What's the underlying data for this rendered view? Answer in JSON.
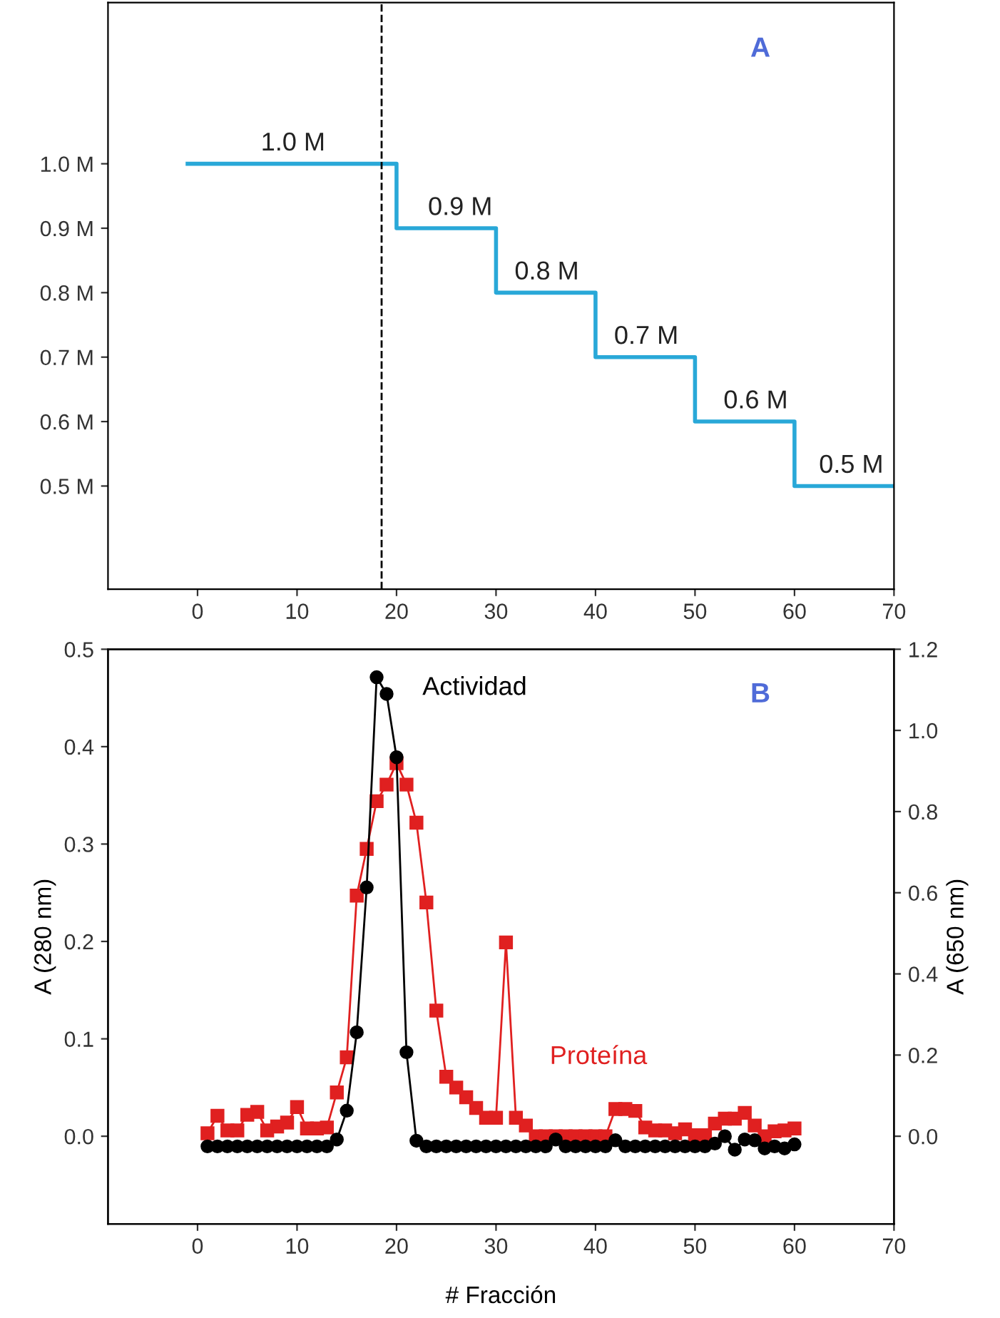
{
  "chart_data": [
    {
      "type": "step",
      "xlim": [
        -9,
        70
      ],
      "xticks": [
        0,
        10,
        20,
        30,
        40,
        50,
        60,
        70
      ],
      "ylim": [
        0.34,
        1.25
      ],
      "yticks": [
        {
          "value": 0.5,
          "label": "0.5 M"
        },
        {
          "value": 0.6,
          "label": "0.6 M"
        },
        {
          "value": 0.7,
          "label": "0.7 M"
        },
        {
          "value": 0.8,
          "label": "0.8 M"
        },
        {
          "value": 0.9,
          "label": "0.9 M"
        },
        {
          "value": 1.0,
          "label": "1.0 M"
        }
      ],
      "series": [
        {
          "color": "#29a8d8",
          "x": [
            -1,
            20,
            30,
            40,
            50,
            60,
            70
          ],
          "values": [
            1.0,
            0.9,
            0.8,
            0.7,
            0.6,
            0.5,
            0.5
          ],
          "marker": "none"
        }
      ],
      "ref_lines": [
        {
          "axis": "x",
          "value": 18.5,
          "color": "#000000",
          "line_style": "dashed"
        }
      ],
      "annotations": [
        "A",
        {
          "text": "1.0 M",
          "x": 9.6,
          "y": 1.0
        },
        {
          "text": "0.9 M",
          "x": 26.4,
          "y": 0.9
        },
        {
          "text": "0.8 M",
          "x": 35.1,
          "y": 0.8
        },
        {
          "text": "0.7 M",
          "x": 45.1,
          "y": 0.7
        },
        {
          "text": "0.6 M",
          "x": 56.1,
          "y": 0.6
        },
        {
          "text": "0.5 M",
          "x": 65.7,
          "y": 0.5
        }
      ]
    },
    {
      "type": "line",
      "xlabel": "# Fracción",
      "ylabel": "A (280 nm)",
      "y2label": "A (650 nm)",
      "xlim": [
        -9,
        70
      ],
      "xticks": [
        0,
        10,
        20,
        30,
        40,
        50,
        60,
        70
      ],
      "ylim": [
        -0.09,
        0.5
      ],
      "yticks": [
        {
          "value": 0,
          "label": "0.0"
        },
        {
          "value": 0.1,
          "label": "0.1"
        },
        {
          "value": 0.2,
          "label": "0.2"
        },
        {
          "value": 0.3,
          "label": "0.3"
        },
        {
          "value": 0.4,
          "label": "0.4"
        },
        {
          "value": 0.5,
          "label": "0.5"
        }
      ],
      "y2lim": [
        -0.216,
        1.2
      ],
      "y2ticks": [
        {
          "value": 0,
          "label": "0.0"
        },
        {
          "value": 0.2,
          "label": "0.2"
        },
        {
          "value": 0.4,
          "label": "0.4"
        },
        {
          "value": 0.6,
          "label": "0.6"
        },
        {
          "value": 0.8,
          "label": "0.8"
        },
        {
          "value": 1.0,
          "label": "1.0"
        },
        {
          "value": 1.2,
          "label": "1.2"
        }
      ],
      "x": [
        1,
        2,
        3,
        4,
        5,
        6,
        7,
        8,
        9,
        10,
        11,
        12,
        13,
        14,
        15,
        16,
        17,
        18,
        19,
        20,
        21,
        22,
        23,
        24,
        25,
        26,
        27,
        28,
        29,
        30,
        31,
        32,
        33,
        34,
        35,
        36,
        37,
        38,
        39,
        40,
        41,
        42,
        43,
        44,
        45,
        46,
        47,
        48,
        49,
        50,
        51,
        52,
        53,
        54,
        55,
        56,
        57,
        58,
        59,
        60
      ],
      "series": [
        {
          "name": "Proteína",
          "color": "#e02020",
          "marker": "square",
          "values": [
            0.003,
            0.021,
            0.006,
            0.006,
            0.022,
            0.025,
            0.006,
            0.01,
            0.014,
            0.03,
            0.008,
            0.008,
            0.009,
            0.045,
            0.081,
            0.247,
            0.295,
            0.344,
            0.361,
            0.383,
            0.361,
            0.322,
            0.24,
            0.129,
            0.061,
            0.05,
            0.04,
            0.029,
            0.019,
            0.019,
            0.199,
            0.019,
            0.011,
            0.0,
            0.0,
            0.0,
            0.0,
            0.0,
            0.0,
            0.0,
            0.0,
            0.028,
            0.028,
            0.026,
            0.009,
            0.006,
            0.006,
            0.003,
            0.007,
            0.001,
            0.001,
            0.013,
            0.018,
            0.018,
            0.024,
            0.011,
            0.0,
            0.005,
            0.006,
            0.008
          ]
        },
        {
          "name": "Actividad",
          "color": "#000000",
          "marker": "circle",
          "axis": "y2",
          "values": [
            -0.025,
            -0.025,
            -0.025,
            -0.025,
            -0.025,
            -0.025,
            -0.025,
            -0.025,
            -0.025,
            -0.025,
            -0.025,
            -0.025,
            -0.025,
            -0.008,
            0.063,
            0.256,
            0.613,
            1.131,
            1.09,
            0.934,
            0.207,
            -0.011,
            -0.025,
            -0.025,
            -0.025,
            -0.025,
            -0.025,
            -0.025,
            -0.025,
            -0.025,
            -0.025,
            -0.025,
            -0.025,
            -0.025,
            -0.025,
            -0.008,
            -0.025,
            -0.025,
            -0.025,
            -0.025,
            -0.025,
            -0.01,
            -0.025,
            -0.025,
            -0.025,
            -0.025,
            -0.025,
            -0.025,
            -0.025,
            -0.025,
            -0.025,
            -0.018,
            0.0,
            -0.033,
            -0.008,
            -0.01,
            -0.03,
            -0.025,
            -0.03,
            -0.02
          ]
        }
      ],
      "annotations": [
        "B"
      ]
    }
  ]
}
